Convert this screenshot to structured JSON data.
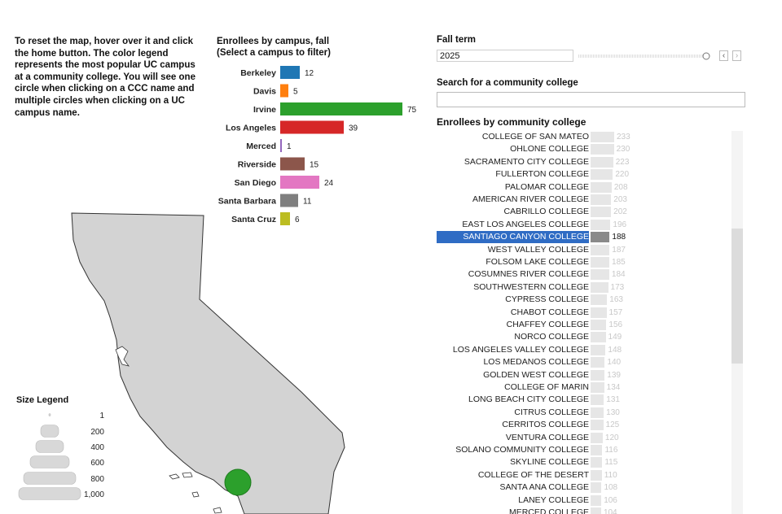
{
  "instructions": "To reset the map, hover over it and click the home button. The color legend represents the most popular UC campus at a community college. You will see one circle when clicking on a CCC name and multiple circles when clicking on a UC campus name.",
  "campus_chart": {
    "title_line1": "Enrollees by campus, fall",
    "title_line2": "(Select a campus to filter)"
  },
  "chart_data": {
    "type": "bar",
    "title": "Enrollees by campus, fall",
    "subtitle": "(Select a campus to filter)",
    "categories": [
      "Berkeley",
      "Davis",
      "Irvine",
      "Los Angeles",
      "Merced",
      "Riverside",
      "San Diego",
      "Santa Barbara",
      "Santa Cruz"
    ],
    "values": [
      12,
      5,
      75,
      39,
      1,
      15,
      24,
      11,
      6
    ],
    "colors": [
      "#1f77b4",
      "#ff7f0e",
      "#2ca02c",
      "#d62728",
      "#9467bd",
      "#8c564b",
      "#e377c2",
      "#7f7f7f",
      "#bcbd22"
    ],
    "orientation": "horizontal"
  },
  "size_legend": {
    "title": "Size Legend",
    "entries": [
      "1",
      "200",
      "400",
      "600",
      "800",
      "1,000"
    ]
  },
  "filters": {
    "fall_term_label": "Fall term",
    "fall_term_value": "2025",
    "prev_icon": "chevron-left-icon",
    "next_icon": "chevron-right-icon",
    "search_label": "Search for a community college",
    "search_value": ""
  },
  "ccc": {
    "title": "Enrollees by community college",
    "max_value": 233,
    "selected": "SANTIAGO CANYON COLLEGE",
    "items": [
      {
        "name": "COLLEGE OF SAN MATEO",
        "value": 233
      },
      {
        "name": "OHLONE COLLEGE",
        "value": 230
      },
      {
        "name": "SACRAMENTO CITY COLLEGE",
        "value": 223
      },
      {
        "name": "FULLERTON COLLEGE",
        "value": 220
      },
      {
        "name": "PALOMAR COLLEGE",
        "value": 208
      },
      {
        "name": "AMERICAN RIVER COLLEGE",
        "value": 203
      },
      {
        "name": "CABRILLO COLLEGE",
        "value": 202
      },
      {
        "name": "EAST LOS ANGELES COLLEGE",
        "value": 196
      },
      {
        "name": "SANTIAGO CANYON COLLEGE",
        "value": 188
      },
      {
        "name": "WEST VALLEY COLLEGE",
        "value": 187
      },
      {
        "name": "FOLSOM LAKE COLLEGE",
        "value": 185
      },
      {
        "name": "COSUMNES RIVER COLLEGE",
        "value": 184
      },
      {
        "name": "SOUTHWESTERN COLLEGE",
        "value": 173
      },
      {
        "name": "CYPRESS COLLEGE",
        "value": 163
      },
      {
        "name": "CHABOT COLLEGE",
        "value": 157
      },
      {
        "name": "CHAFFEY COLLEGE",
        "value": 156
      },
      {
        "name": "NORCO COLLEGE",
        "value": 149
      },
      {
        "name": "LOS ANGELES VALLEY COLLEGE",
        "value": 148
      },
      {
        "name": "LOS MEDANOS COLLEGE",
        "value": 140
      },
      {
        "name": "GOLDEN WEST COLLEGE",
        "value": 139
      },
      {
        "name": "COLLEGE OF MARIN",
        "value": 134
      },
      {
        "name": "LONG BEACH CITY COLLEGE",
        "value": 131
      },
      {
        "name": "CITRUS COLLEGE",
        "value": 130
      },
      {
        "name": "CERRITOS COLLEGE",
        "value": 125
      },
      {
        "name": "VENTURA COLLEGE",
        "value": 120
      },
      {
        "name": "SOLANO COMMUNITY COLLEGE",
        "value": 116
      },
      {
        "name": "SKYLINE COLLEGE",
        "value": 115
      },
      {
        "name": "COLLEGE OF THE DESERT",
        "value": 110
      },
      {
        "name": "SANTA ANA COLLEGE",
        "value": 108
      },
      {
        "name": "LANEY COLLEGE",
        "value": 106
      },
      {
        "name": "MERCED COLLEGE",
        "value": 104
      }
    ]
  },
  "map": {
    "land_color": "#d3d3d3",
    "outline_color": "#333333",
    "marker_color": "#2ca02c"
  }
}
